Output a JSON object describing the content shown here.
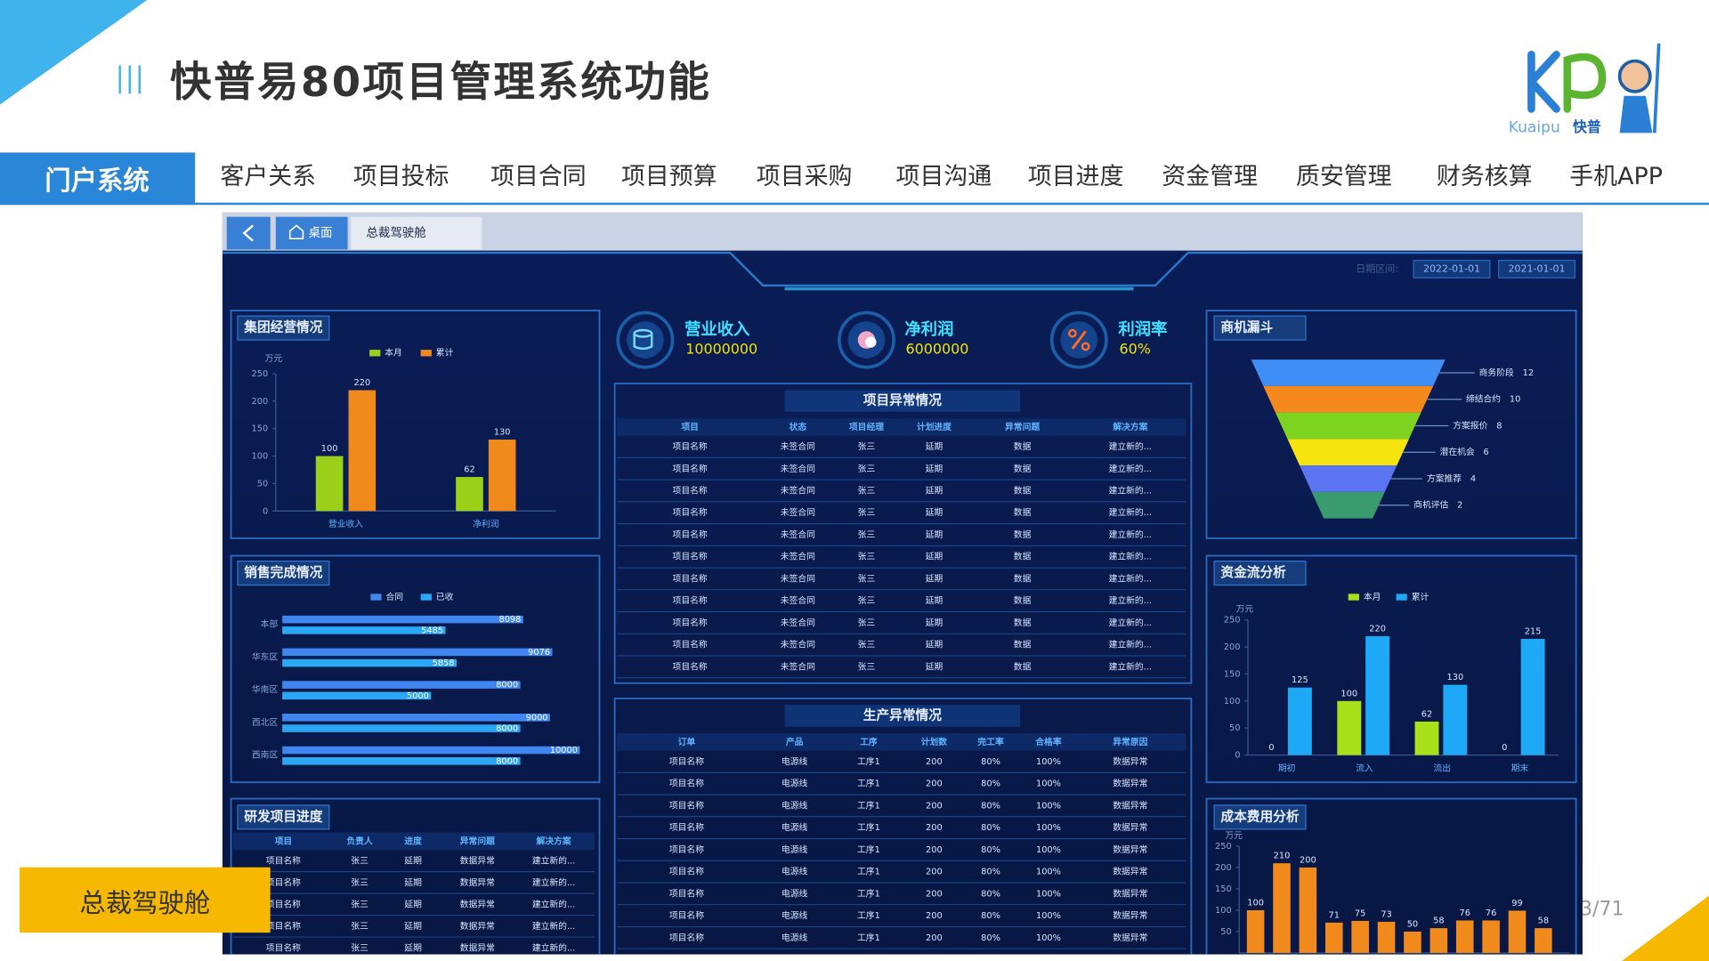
{
  "header": {
    "title": "快普易80项目管理系统功能",
    "logo": {
      "latin": "Kuaipu",
      "brand": "快普"
    }
  },
  "nav": {
    "active": "门户系统",
    "items": [
      "客户关系",
      "项目投标",
      "项目合同",
      "项目预算",
      "项目采购",
      "项目沟通",
      "项目进度",
      "资金管理",
      "质安管理",
      "财务核算",
      "手机APP"
    ]
  },
  "page_number": "3/71",
  "caption": "总裁驾驶舱",
  "dashboard": {
    "tabs": [
      "桌面",
      "总裁驾驶舱"
    ],
    "date_label": "日期区间:",
    "dates": [
      "2022-01-01",
      "2021-01-01"
    ],
    "kpis": [
      {
        "label": "营业收入",
        "value": 10000000
      },
      {
        "label": "净利润",
        "value": 6000000
      },
      {
        "label": "利润率",
        "value": 60,
        "value_label": "60%"
      }
    ],
    "group_ops": {
      "type": "bar",
      "title": "集团经营情况",
      "unit": "万元",
      "categories": [
        "营业收入",
        "净利润"
      ],
      "series": [
        {
          "name": "本月",
          "color": "#9ccf1a",
          "values": [
            100,
            62
          ]
        },
        {
          "name": "累计",
          "color": "#f08a1c",
          "values": [
            220,
            130
          ]
        }
      ],
      "ylim": [
        0,
        250
      ],
      "yticks": [
        0,
        50,
        100,
        150,
        200,
        250
      ]
    },
    "sales": {
      "type": "bar",
      "orientation": "horizontal",
      "title": "销售完成情况",
      "categories": [
        "本部",
        "华东区",
        "华南区",
        "西北区",
        "西南区"
      ],
      "series": [
        {
          "name": "合同",
          "color": "#3f86f0",
          "values": [
            8098,
            9076,
            8000,
            9000,
            10000
          ]
        },
        {
          "name": "已收",
          "color": "#2aa6f5",
          "values": [
            5485,
            5858,
            5000,
            8000,
            8000
          ]
        }
      ]
    },
    "rd_progress": {
      "title": "研发项目进度",
      "columns": [
        "项目",
        "负责人",
        "进度",
        "异常问题",
        "解决方案"
      ],
      "rows": [
        [
          "项目名称",
          "张三",
          "延期",
          "数据异常",
          "建立新的..."
        ],
        [
          "项目名称",
          "张三",
          "延期",
          "数据异常",
          "建立新的..."
        ],
        [
          "项目名称",
          "张三",
          "延期",
          "数据异常",
          "建立新的..."
        ],
        [
          "项目名称",
          "张三",
          "延期",
          "数据异常",
          "建立新的..."
        ],
        [
          "项目名称",
          "张三",
          "延期",
          "数据异常",
          "建立新的..."
        ]
      ]
    },
    "project_exceptions": {
      "title": "项目异常情况",
      "columns": [
        "项目",
        "状态",
        "项目经理",
        "计划进度",
        "异常问题",
        "解决方案"
      ],
      "rows": [
        [
          "项目名称",
          "未签合同",
          "张三",
          "延期",
          "数据",
          "建立新的..."
        ],
        [
          "项目名称",
          "未签合同",
          "张三",
          "延期",
          "数据",
          "建立新的..."
        ],
        [
          "项目名称",
          "未签合同",
          "张三",
          "延期",
          "数据",
          "建立新的..."
        ],
        [
          "项目名称",
          "未签合同",
          "张三",
          "延期",
          "数据",
          "建立新的..."
        ],
        [
          "项目名称",
          "未签合同",
          "张三",
          "延期",
          "数据",
          "建立新的..."
        ],
        [
          "项目名称",
          "未签合同",
          "张三",
          "延期",
          "数据",
          "建立新的..."
        ],
        [
          "项目名称",
          "未签合同",
          "张三",
          "延期",
          "数据",
          "建立新的..."
        ],
        [
          "项目名称",
          "未签合同",
          "张三",
          "延期",
          "数据",
          "建立新的..."
        ],
        [
          "项目名称",
          "未签合同",
          "张三",
          "延期",
          "数据",
          "建立新的..."
        ],
        [
          "项目名称",
          "未签合同",
          "张三",
          "延期",
          "数据",
          "建立新的..."
        ],
        [
          "项目名称",
          "未签合同",
          "张三",
          "延期",
          "数据",
          "建立新的..."
        ]
      ]
    },
    "production_exceptions": {
      "title": "生产异常情况",
      "columns": [
        "订单",
        "产品",
        "工序",
        "计划数",
        "完工率",
        "合格率",
        "异常原因"
      ],
      "rows": [
        [
          "项目名称",
          "电源线",
          "工序1",
          "200",
          "80%",
          "100%",
          "数据异常"
        ],
        [
          "项目名称",
          "电源线",
          "工序1",
          "200",
          "80%",
          "100%",
          "数据异常"
        ],
        [
          "项目名称",
          "电源线",
          "工序1",
          "200",
          "80%",
          "100%",
          "数据异常"
        ],
        [
          "项目名称",
          "电源线",
          "工序1",
          "200",
          "80%",
          "100%",
          "数据异常"
        ],
        [
          "项目名称",
          "电源线",
          "工序1",
          "200",
          "80%",
          "100%",
          "数据异常"
        ],
        [
          "项目名称",
          "电源线",
          "工序1",
          "200",
          "80%",
          "100%",
          "数据异常"
        ],
        [
          "项目名称",
          "电源线",
          "工序1",
          "200",
          "80%",
          "100%",
          "数据异常"
        ],
        [
          "项目名称",
          "电源线",
          "工序1",
          "200",
          "80%",
          "100%",
          "数据异常"
        ],
        [
          "项目名称",
          "电源线",
          "工序1",
          "200",
          "80%",
          "100%",
          "数据异常"
        ]
      ]
    },
    "funnel": {
      "type": "funnel",
      "title": "商机漏斗",
      "stages": [
        {
          "name": "商务阶段",
          "value": 12,
          "color": "#3f8ef6"
        },
        {
          "name": "缔结合约",
          "value": 10,
          "color": "#f5891e"
        },
        {
          "name": "方案报价",
          "value": 8,
          "color": "#7ed321"
        },
        {
          "name": "潜在机会",
          "value": 6,
          "color": "#f6e40f"
        },
        {
          "name": "方案推荐",
          "value": 4,
          "color": "#5b74f2"
        },
        {
          "name": "商机评估",
          "value": 2,
          "color": "#3a9b6e"
        }
      ]
    },
    "cash_flow": {
      "type": "bar",
      "title": "资金流分析",
      "unit": "万元",
      "categories": [
        "期初",
        "流入",
        "流出",
        "期末"
      ],
      "series": [
        {
          "name": "本月",
          "color": "#a9e01a",
          "values": [
            0,
            100,
            62,
            0
          ]
        },
        {
          "name": "累计",
          "color": "#1ea8f5",
          "values": [
            125,
            220,
            130,
            215
          ]
        }
      ],
      "ylim": [
        0,
        250
      ],
      "yticks": [
        0,
        50,
        100,
        150,
        200,
        250
      ]
    },
    "cost": {
      "type": "bar",
      "title": "成本费用分析",
      "unit": "万元",
      "color": "#f08a1c",
      "values": [
        100,
        210,
        200,
        71,
        75,
        73,
        50,
        58,
        76,
        76,
        99,
        58
      ],
      "ylim": [
        0,
        250
      ],
      "yticks": [
        50,
        100,
        150,
        200,
        250
      ]
    }
  }
}
